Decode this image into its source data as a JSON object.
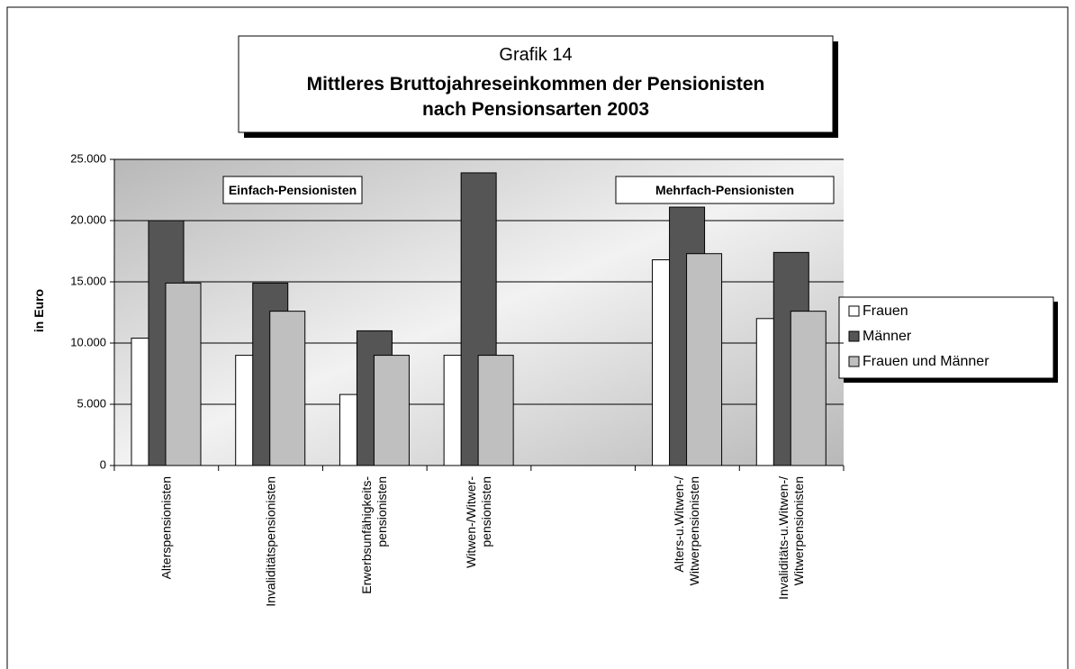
{
  "chart_data": {
    "type": "bar",
    "subtitle": "Grafik 14",
    "title": "Mittleres Bruttojahreseinkommen der Pensionisten\nnach Pensionsarten 2003",
    "y_label": "in Euro",
    "annotations": [
      "Einfach-Pensionisten",
      "Mehrfach-Pensionisten"
    ],
    "categories": [
      "Alterspensionisten",
      "Invaliditätspensionisten",
      "Erwerbsunfähigkeits-\npensionisten",
      "Witwen-/Witwer-\npensionisten",
      null,
      "Alters-u.Witwen-/\nWitwerpensionisten",
      "Invaliditäts-u.Witwen-/\nWitwerpensionisten"
    ],
    "series": [
      {
        "name": "Frauen",
        "color": "#ffffff",
        "values": [
          10400,
          9000,
          5800,
          9000,
          null,
          16800,
          12000
        ]
      },
      {
        "name": "Männer",
        "color": "#555555",
        "values": [
          20000,
          14900,
          11000,
          23900,
          null,
          21100,
          17400
        ]
      },
      {
        "name": "Frauen und Männer",
        "color": "#bfbfbf",
        "values": [
          14900,
          12600,
          9000,
          9000,
          null,
          17300,
          12600
        ]
      }
    ],
    "ylim": [
      0,
      25000
    ],
    "yticks": [
      0,
      {
        "value": 5000,
        "label": "5.000"
      },
      {
        "value": 10000,
        "label": "10.000"
      },
      {
        "value": 15000,
        "label": "15.000"
      },
      {
        "value": 20000,
        "label": "20.000"
      },
      {
        "value": 25000,
        "label": "25.000"
      }
    ],
    "grid": true,
    "legend": "right"
  }
}
